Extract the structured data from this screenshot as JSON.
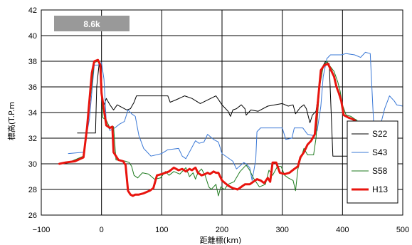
{
  "chart_data": {
    "type": "line",
    "annotation": "8.6k",
    "xlabel": "距離標(km)",
    "ylabel": "標高(T.P.m",
    "xlim": [
      -100,
      500
    ],
    "ylim": [
      26,
      42
    ],
    "xticks": [
      -100,
      0,
      100,
      200,
      300,
      400,
      500
    ],
    "yticks": [
      26,
      28,
      30,
      32,
      34,
      36,
      38,
      40,
      42
    ],
    "grid": true,
    "legend_position": "right",
    "series": [
      {
        "name": "S22",
        "color": "#000000",
        "width": 1,
        "points": [
          [
            -40,
            32.4
          ],
          [
            -10,
            32.4
          ],
          [
            -8,
            36
          ],
          [
            -4,
            37.8
          ],
          [
            0,
            36.8
          ],
          [
            2,
            34.3
          ],
          [
            8,
            35.1
          ],
          [
            14,
            34.6
          ],
          [
            20,
            34.2
          ],
          [
            26,
            34.6
          ],
          [
            34,
            34.4
          ],
          [
            42,
            34.2
          ],
          [
            48,
            34.3
          ],
          [
            54,
            34.8
          ],
          [
            58,
            35.3
          ],
          [
            110,
            35.3
          ],
          [
            114,
            34.8
          ],
          [
            124,
            35
          ],
          [
            138,
            35.3
          ],
          [
            150,
            35.1
          ],
          [
            164,
            34.7
          ],
          [
            190,
            35.3
          ],
          [
            200,
            34.6
          ],
          [
            206,
            34.3
          ],
          [
            210,
            34.1
          ],
          [
            214,
            33.7
          ],
          [
            218,
            34.2
          ],
          [
            224,
            34.3
          ],
          [
            232,
            34.6
          ],
          [
            238,
            34.3
          ],
          [
            240,
            33.8
          ],
          [
            248,
            34.2
          ],
          [
            260,
            34.1
          ],
          [
            276,
            34.5
          ],
          [
            300,
            34.7
          ],
          [
            310,
            34.5
          ],
          [
            318,
            34.6
          ],
          [
            322,
            33.9
          ],
          [
            330,
            34.4
          ],
          [
            336,
            34.6
          ],
          [
            340,
            34.3
          ],
          [
            346,
            33.2
          ],
          [
            350,
            33.8
          ],
          [
            356,
            34.1
          ],
          [
            362,
            36.2
          ],
          [
            366,
            37.5
          ],
          [
            372,
            38
          ],
          [
            378,
            37.8
          ],
          [
            384,
            30.6
          ],
          [
            392,
            30.6
          ],
          [
            436,
            30.6
          ]
        ]
      },
      {
        "name": "S43",
        "color": "#3a78d6",
        "width": 1,
        "points": [
          [
            -55,
            30.8
          ],
          [
            -30,
            30.9
          ],
          [
            -20,
            33.5
          ],
          [
            -12,
            37.7
          ],
          [
            -6,
            37.7
          ],
          [
            0,
            37.9
          ],
          [
            4,
            36.6
          ],
          [
            8,
            33.2
          ],
          [
            14,
            32.6
          ],
          [
            22,
            32.8
          ],
          [
            30,
            33.1
          ],
          [
            38,
            33.3
          ],
          [
            44,
            34.2
          ],
          [
            50,
            33.9
          ],
          [
            56,
            33.7
          ],
          [
            62,
            32.2
          ],
          [
            70,
            31.2
          ],
          [
            82,
            30.6
          ],
          [
            100,
            30.8
          ],
          [
            110,
            31.1
          ],
          [
            128,
            31.2
          ],
          [
            134,
            30.6
          ],
          [
            140,
            30.4
          ],
          [
            148,
            31.1
          ],
          [
            156,
            31.8
          ],
          [
            162,
            31.6
          ],
          [
            170,
            31.7
          ],
          [
            176,
            32.3
          ],
          [
            186,
            31.9
          ],
          [
            194,
            31.7
          ],
          [
            200,
            30.8
          ],
          [
            218,
            30.2
          ],
          [
            224,
            29.6
          ],
          [
            236,
            30.1
          ],
          [
            240,
            30
          ],
          [
            246,
            29.7
          ],
          [
            250,
            28.7
          ],
          [
            256,
            30.3
          ],
          [
            258,
            32.5
          ],
          [
            264,
            32.8
          ],
          [
            300,
            32.8
          ],
          [
            306,
            31.9
          ],
          [
            316,
            32
          ],
          [
            320,
            32.8
          ],
          [
            334,
            32.8
          ],
          [
            342,
            32.3
          ],
          [
            352,
            32.2
          ],
          [
            358,
            32.6
          ],
          [
            364,
            34.5
          ],
          [
            368,
            36.8
          ],
          [
            374,
            38.2
          ],
          [
            380,
            38.5
          ],
          [
            398,
            38.5
          ],
          [
            406,
            38.6
          ],
          [
            420,
            38.5
          ],
          [
            430,
            38.3
          ],
          [
            438,
            38.7
          ],
          [
            446,
            38.6
          ],
          [
            452,
            32.8
          ],
          [
            458,
            32.6
          ],
          [
            464,
            33.2
          ],
          [
            470,
            34.3
          ],
          [
            478,
            35.3
          ],
          [
            486,
            34.9
          ],
          [
            490,
            34.6
          ],
          [
            500,
            34.5
          ]
        ]
      },
      {
        "name": "S58",
        "color": "#1d7a1d",
        "width": 1,
        "points": [
          [
            -70,
            30
          ],
          [
            -50,
            30.2
          ],
          [
            -30,
            30.6
          ],
          [
            -26,
            32
          ],
          [
            -18,
            35.3
          ],
          [
            -12,
            37.9
          ],
          [
            -6,
            38
          ],
          [
            -2,
            37.6
          ],
          [
            2,
            33.6
          ],
          [
            8,
            33.4
          ],
          [
            14,
            32.8
          ],
          [
            20,
            32.9
          ],
          [
            24,
            30.3
          ],
          [
            30,
            30.3
          ],
          [
            40,
            30.2
          ],
          [
            46,
            30.1
          ],
          [
            50,
            29.8
          ],
          [
            54,
            29.1
          ],
          [
            60,
            28.9
          ],
          [
            68,
            29.3
          ],
          [
            78,
            29.2
          ],
          [
            88,
            28.8
          ],
          [
            98,
            28.9
          ],
          [
            106,
            29.4
          ],
          [
            112,
            29.1
          ],
          [
            120,
            29.4
          ],
          [
            130,
            29.2
          ],
          [
            140,
            29.7
          ],
          [
            146,
            29
          ],
          [
            152,
            29.3
          ],
          [
            156,
            28.8
          ],
          [
            160,
            29.3
          ],
          [
            166,
            29.6
          ],
          [
            172,
            29.1
          ],
          [
            178,
            28.2
          ],
          [
            182,
            28
          ],
          [
            190,
            28.4
          ],
          [
            194,
            27.5
          ],
          [
            198,
            28.2
          ],
          [
            204,
            28
          ],
          [
            210,
            28.4
          ],
          [
            220,
            28.6
          ],
          [
            230,
            29.4
          ],
          [
            240,
            29.9
          ],
          [
            246,
            29.5
          ],
          [
            252,
            28.9
          ],
          [
            262,
            28.2
          ],
          [
            272,
            28.4
          ],
          [
            278,
            29.5
          ],
          [
            284,
            29.1
          ],
          [
            292,
            29.8
          ],
          [
            298,
            29.8
          ],
          [
            304,
            29.1
          ],
          [
            310,
            28.9
          ],
          [
            318,
            28.7
          ],
          [
            322,
            27.9
          ],
          [
            326,
            29.6
          ],
          [
            330,
            30.3
          ],
          [
            336,
            31.2
          ],
          [
            342,
            30.7
          ],
          [
            352,
            30.7
          ],
          [
            356,
            32
          ],
          [
            362,
            36
          ],
          [
            368,
            37.6
          ],
          [
            374,
            38
          ],
          [
            378,
            37.7
          ],
          [
            386,
            37.2
          ],
          [
            392,
            36.4
          ],
          [
            396,
            35.7
          ],
          [
            400,
            34.6
          ],
          [
            406,
            33.8
          ],
          [
            414,
            33.7
          ],
          [
            420,
            33.5
          ],
          [
            424,
            33.4
          ],
          [
            428,
            31.8
          ]
        ]
      },
      {
        "name": "H13",
        "color": "#e8140e",
        "width": 3,
        "points": [
          [
            -70,
            30
          ],
          [
            -60,
            30.1
          ],
          [
            -44,
            30.2
          ],
          [
            -30,
            30.5
          ],
          [
            -24,
            32.8
          ],
          [
            -16,
            37.1
          ],
          [
            -12,
            38
          ],
          [
            -6,
            38.1
          ],
          [
            -2,
            37.7
          ],
          [
            0,
            35.5
          ],
          [
            4,
            34.2
          ],
          [
            8,
            33
          ],
          [
            14,
            32.8
          ],
          [
            18,
            32.9
          ],
          [
            20,
            30.9
          ],
          [
            24,
            30.6
          ],
          [
            28,
            30.3
          ],
          [
            36,
            30.2
          ],
          [
            40,
            29.9
          ],
          [
            44,
            27.9
          ],
          [
            48,
            27.6
          ],
          [
            52,
            27.5
          ],
          [
            56,
            27.6
          ],
          [
            62,
            27.6
          ],
          [
            70,
            27.7
          ],
          [
            80,
            27.9
          ],
          [
            86,
            28.1
          ],
          [
            92,
            29.1
          ],
          [
            100,
            29.2
          ],
          [
            106,
            29.3
          ],
          [
            112,
            29.4
          ],
          [
            120,
            29.7
          ],
          [
            128,
            29.5
          ],
          [
            134,
            29.6
          ],
          [
            140,
            29.4
          ],
          [
            146,
            29.6
          ],
          [
            150,
            29.5
          ],
          [
            156,
            29.7
          ],
          [
            160,
            29.3
          ],
          [
            166,
            29.1
          ],
          [
            172,
            29.2
          ],
          [
            176,
            29.3
          ],
          [
            180,
            29.2
          ],
          [
            186,
            29.4
          ],
          [
            190,
            29.3
          ],
          [
            194,
            29.3
          ],
          [
            200,
            28.7
          ],
          [
            210,
            28.3
          ],
          [
            218,
            28.1
          ],
          [
            226,
            28
          ],
          [
            232,
            28.2
          ],
          [
            238,
            28.4
          ],
          [
            246,
            28.4
          ],
          [
            252,
            28.6
          ],
          [
            258,
            28.8
          ],
          [
            264,
            28.7
          ],
          [
            270,
            28.5
          ],
          [
            276,
            28.9
          ],
          [
            280,
            28.6
          ],
          [
            284,
            30.1
          ],
          [
            290,
            30.1
          ],
          [
            296,
            29.3
          ],
          [
            304,
            29.2
          ],
          [
            312,
            29.3
          ],
          [
            320,
            29.6
          ],
          [
            326,
            29.8
          ],
          [
            330,
            30.5
          ],
          [
            336,
            30.9
          ],
          [
            342,
            31.5
          ],
          [
            348,
            31.8
          ],
          [
            354,
            32.3
          ],
          [
            360,
            35.3
          ],
          [
            364,
            37.3
          ],
          [
            370,
            37.7
          ],
          [
            376,
            37.8
          ],
          [
            380,
            37.4
          ],
          [
            386,
            36.8
          ],
          [
            390,
            36
          ],
          [
            394,
            35.5
          ],
          [
            398,
            34.9
          ],
          [
            402,
            33.8
          ],
          [
            410,
            33.6
          ],
          [
            416,
            33.5
          ],
          [
            420,
            33.4
          ],
          [
            426,
            33.1
          ],
          [
            428,
            32.2
          ],
          [
            436,
            32.2
          ]
        ]
      }
    ]
  }
}
